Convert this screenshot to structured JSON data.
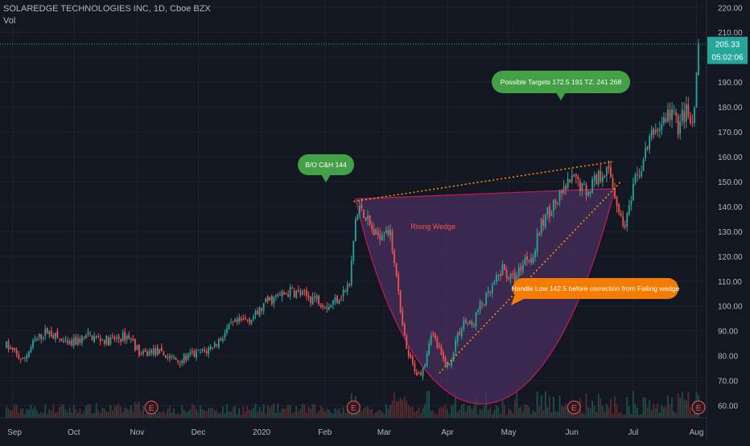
{
  "header": {
    "symbol_line": "SOLAREDGE TECHNOLOGIES INC, 1D, Cboe BZX",
    "volume_label": "Vol"
  },
  "price_tag": {
    "last_price": "205.33",
    "countdown": "05:02:06"
  },
  "colors": {
    "background": "#131722",
    "grid": "#1e2230",
    "up": "#26a69a",
    "down": "#ef5350",
    "cup_fill": "#4a2f5e",
    "cup_stroke": "#c2185b",
    "wedge_line": "#ff9800",
    "bubble_green": "#43a047",
    "bubble_orange": "#f57c00",
    "axis_text": "#b2b5be"
  },
  "annotations": {
    "bubble_breakout": "B/O C&H 144",
    "bubble_targets": "Possible Targets   172.5  191   TZ.  241  268",
    "bubble_handle": "Handle Low 142.5 before correction from Falling wedge",
    "wedge_label": "Rising Wedge",
    "earnings_marker": "E"
  },
  "chart_data": {
    "type": "candlestick",
    "title": "SOLAREDGE TECHNOLOGIES INC, 1D, Cboe BZX",
    "ylim": [
      55,
      223
    ],
    "y_ticks": [
      60,
      70,
      80,
      90,
      100,
      110,
      120,
      130,
      140,
      150,
      160,
      170,
      180,
      190,
      200,
      210,
      220
    ],
    "y_tick_labels": [
      "60.00",
      "70.00",
      "80.00",
      "90.00",
      "100.00",
      "110.00",
      "120.00",
      "130.00",
      "140.00",
      "150.00",
      "160.00",
      "170.00",
      "180.00",
      "190.00",
      "200.00",
      "210.00",
      "220.00"
    ],
    "x_labels": [
      "Sep",
      "Oct",
      "Nov",
      "Dec",
      "2020",
      "Feb",
      "Mar",
      "Apr",
      "May",
      "Jun",
      "Jul",
      "Aug"
    ],
    "x_label_days": [
      3,
      33,
      64,
      94,
      125,
      156,
      185,
      216,
      246,
      277,
      307,
      338
    ],
    "last_price": 205.33,
    "earnings_days": [
      71,
      170,
      278,
      339
    ],
    "price_path": [
      [
        0,
        84
      ],
      [
        8,
        78
      ],
      [
        14,
        86
      ],
      [
        20,
        90
      ],
      [
        30,
        84
      ],
      [
        40,
        88
      ],
      [
        50,
        86
      ],
      [
        60,
        88
      ],
      [
        66,
        80
      ],
      [
        72,
        82
      ],
      [
        78,
        80
      ],
      [
        84,
        78
      ],
      [
        90,
        80
      ],
      [
        98,
        82
      ],
      [
        104,
        86
      ],
      [
        110,
        92
      ],
      [
        116,
        94
      ],
      [
        122,
        96
      ],
      [
        128,
        102
      ],
      [
        134,
        104
      ],
      [
        140,
        106
      ],
      [
        146,
        104
      ],
      [
        152,
        103
      ],
      [
        158,
        100
      ],
      [
        163,
        104
      ],
      [
        168,
        108
      ],
      [
        171,
        135
      ],
      [
        174,
        140
      ],
      [
        178,
        132
      ],
      [
        181,
        128
      ],
      [
        184,
        130
      ],
      [
        186,
        132
      ],
      [
        188,
        128
      ],
      [
        191,
        114
      ],
      [
        193,
        96
      ],
      [
        196,
        82
      ],
      [
        199,
        76
      ],
      [
        202,
        72
      ],
      [
        205,
        78
      ],
      [
        208,
        90
      ],
      [
        211,
        84
      ],
      [
        214,
        78
      ],
      [
        217,
        76
      ],
      [
        220,
        86
      ],
      [
        224,
        94
      ],
      [
        228,
        92
      ],
      [
        232,
        100
      ],
      [
        236,
        104
      ],
      [
        240,
        110
      ],
      [
        243,
        115
      ],
      [
        246,
        112
      ],
      [
        249,
        110
      ],
      [
        252,
        116
      ],
      [
        255,
        120
      ],
      [
        258,
        120
      ],
      [
        261,
        130
      ],
      [
        264,
        136
      ],
      [
        267,
        140
      ],
      [
        270,
        142
      ],
      [
        273,
        146
      ],
      [
        276,
        150
      ],
      [
        280,
        150
      ],
      [
        284,
        146
      ],
      [
        287,
        150
      ],
      [
        290,
        152
      ],
      [
        293,
        155
      ],
      [
        296,
        152
      ],
      [
        299,
        142
      ],
      [
        302,
        132
      ],
      [
        305,
        138
      ],
      [
        308,
        150
      ],
      [
        311,
        156
      ],
      [
        314,
        164
      ],
      [
        317,
        170
      ],
      [
        320,
        172
      ],
      [
        323,
        176
      ],
      [
        326,
        178
      ],
      [
        329,
        172
      ],
      [
        331,
        176
      ],
      [
        333,
        178
      ],
      [
        335,
        172
      ],
      [
        337,
        176
      ],
      [
        339,
        205
      ]
    ]
  }
}
